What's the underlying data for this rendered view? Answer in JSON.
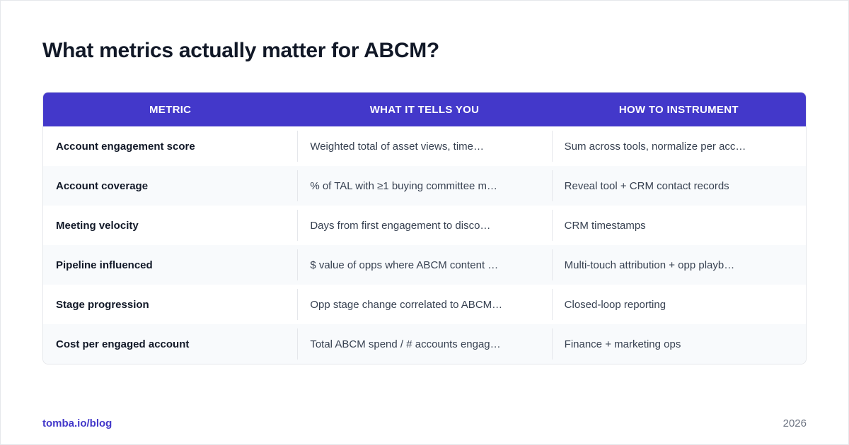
{
  "title": "What metrics actually matter for ABCM?",
  "table": {
    "headers": [
      "METRIC",
      "WHAT IT TELLS YOU",
      "HOW TO INSTRUMENT"
    ],
    "rows": [
      [
        "Account engagement score",
        "Weighted total of asset views, time…",
        "Sum across tools, normalize per acc…"
      ],
      [
        "Account coverage",
        "% of TAL with ≥1 buying committee m…",
        "Reveal tool + CRM contact records"
      ],
      [
        "Meeting velocity",
        "Days from first engagement to disco…",
        "CRM timestamps"
      ],
      [
        "Pipeline influenced",
        "$ value of opps where ABCM content …",
        "Multi-touch attribution + opp playb…"
      ],
      [
        "Stage progression",
        "Opp stage change correlated to ABCM…",
        "Closed-loop reporting"
      ],
      [
        "Cost per engaged account",
        "Total ABCM spend / # accounts engag…",
        "Finance + marketing ops"
      ]
    ]
  },
  "footer": {
    "link": "tomba.io/blog",
    "year": "2026"
  },
  "colors": {
    "header_bg": "#4338ca",
    "link": "#4338ca",
    "alt_row": "#f8fafc"
  }
}
